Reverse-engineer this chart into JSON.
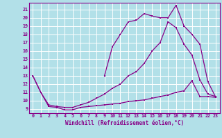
{
  "background_color": "#b2e0e8",
  "grid_color": "#ffffff",
  "line_color": "#880088",
  "xlabel": "Windchill (Refroidissement éolien,°C)",
  "xlim": [
    -0.5,
    23.5
  ],
  "ylim": [
    8.5,
    21.8
  ],
  "yticks": [
    9,
    10,
    11,
    12,
    13,
    14,
    15,
    16,
    17,
    18,
    19,
    20,
    21
  ],
  "xticks": [
    0,
    1,
    2,
    3,
    4,
    5,
    6,
    7,
    8,
    9,
    10,
    11,
    12,
    13,
    14,
    15,
    16,
    17,
    18,
    19,
    20,
    21,
    22,
    23
  ],
  "line1_x": [
    0,
    1,
    2,
    3,
    4,
    5,
    6,
    7,
    8,
    9,
    10,
    11,
    12,
    13,
    14,
    15,
    16,
    17,
    18,
    19,
    20,
    21,
    22,
    23
  ],
  "line1_y": [
    13,
    11,
    9.3,
    9.2,
    8.9,
    8.9,
    9.2,
    9.3,
    9.4,
    9.5,
    9.6,
    9.7,
    9.9,
    10.0,
    10.1,
    10.3,
    10.5,
    10.7,
    11.0,
    11.2,
    12.4,
    10.5,
    10.5,
    10.4
  ],
  "line2_x": [
    0,
    1,
    2,
    3,
    4,
    5,
    6,
    7,
    8,
    9,
    10,
    11,
    12,
    13,
    14,
    15,
    16,
    17,
    18,
    19,
    20,
    21,
    22,
    23
  ],
  "line2_y": [
    13,
    11,
    9.5,
    9.3,
    9.2,
    9.2,
    9.5,
    9.8,
    10.3,
    10.8,
    11.5,
    12.0,
    13.0,
    13.5,
    14.5,
    16.0,
    17.0,
    19.5,
    18.8,
    16.8,
    15.5,
    12.5,
    10.8,
    10.5
  ],
  "line3_x": [
    9,
    10,
    11,
    12,
    13,
    14,
    15,
    16,
    17,
    18,
    19,
    20,
    21,
    22,
    23
  ],
  "line3_y": [
    13.0,
    16.5,
    18.0,
    19.5,
    19.7,
    20.5,
    20.2,
    20.0,
    20.0,
    21.5,
    19.0,
    18.0,
    16.8,
    12.3,
    10.4
  ]
}
